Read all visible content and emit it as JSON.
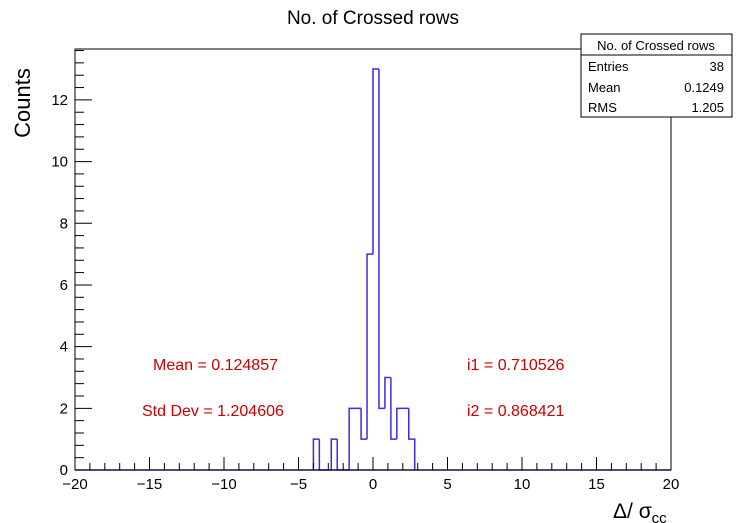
{
  "chart_data": {
    "type": "histogram",
    "title": "No. of Crossed rows",
    "xlabel": "Δ/ σ",
    "xlabel_sub": "cc",
    "ylabel": "Counts",
    "xlim": [
      -20,
      20
    ],
    "ylim": [
      0,
      13.65
    ],
    "x_ticks": [
      -20,
      -15,
      -10,
      -5,
      0,
      5,
      10,
      15,
      20
    ],
    "x_tick_labels": [
      "−20",
      "−15",
      "−10",
      "−5",
      "0",
      "5",
      "10",
      "15",
      "20"
    ],
    "y_ticks": [
      0,
      2,
      4,
      6,
      8,
      10,
      12
    ],
    "y_tick_labels": [
      "0",
      "2",
      "4",
      "6",
      "8",
      "10",
      "12"
    ],
    "bin_width": 0.4,
    "bins": [
      {
        "x": -4.0,
        "count": 1
      },
      {
        "x": -3.6,
        "count": 0
      },
      {
        "x": -3.2,
        "count": 0
      },
      {
        "x": -2.8,
        "count": 1
      },
      {
        "x": -2.4,
        "count": 0
      },
      {
        "x": -2.0,
        "count": 0
      },
      {
        "x": -1.6,
        "count": 2
      },
      {
        "x": -1.2,
        "count": 2
      },
      {
        "x": -0.8,
        "count": 1
      },
      {
        "x": -0.4,
        "count": 7
      },
      {
        "x": 0.0,
        "count": 13
      },
      {
        "x": 0.4,
        "count": 2
      },
      {
        "x": 0.8,
        "count": 3
      },
      {
        "x": 1.2,
        "count": 1
      },
      {
        "x": 1.6,
        "count": 2
      },
      {
        "x": 2.0,
        "count": 2
      },
      {
        "x": 2.4,
        "count": 1
      }
    ],
    "line_color": "#3a2be6",
    "grid": false,
    "stats_box": {
      "title": "No. of Crossed rows",
      "rows": [
        {
          "label": "Entries",
          "value": "38"
        },
        {
          "label": "Mean",
          "value": "0.1249"
        },
        {
          "label": "RMS",
          "value": "1.205"
        }
      ],
      "placement": "top-right"
    },
    "annotations": [
      {
        "text": "Mean = 0.124857",
        "color": "#cc0000"
      },
      {
        "text": "Std Dev = 1.204606",
        "color": "#cc0000"
      },
      {
        "text": "i1 = 0.710526",
        "color": "#cc0000"
      },
      {
        "text": "i2 = 0.868421",
        "color": "#cc0000"
      }
    ]
  }
}
